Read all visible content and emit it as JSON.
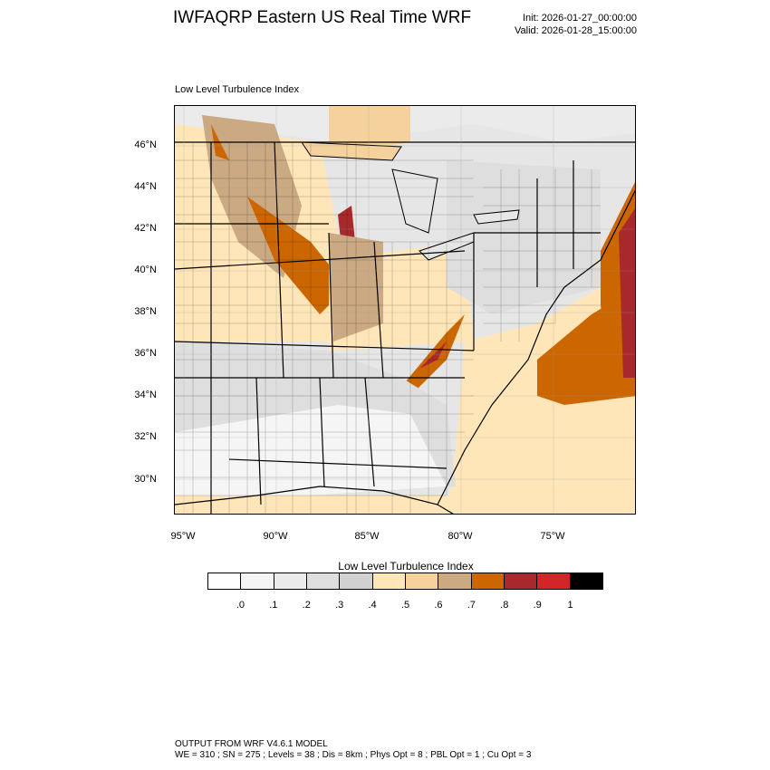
{
  "header": {
    "title": "IWFAQRP Eastern US Real Time WRF",
    "init": "Init: 2026-01-27_00:00:00",
    "valid": "Valid: 2026-01-28_15:00:00"
  },
  "map": {
    "field_title": "Low Level Turbulence Index",
    "lat_labels": [
      "46°N",
      "44°N",
      "42°N",
      "40°N",
      "38°N",
      "36°N",
      "34°N",
      "32°N",
      "30°N"
    ],
    "lon_labels": [
      "95°W",
      "90°W",
      "85°W",
      "80°W",
      "75°W"
    ],
    "region": "Eastern United States"
  },
  "colorbar": {
    "title": "Low Level Turbulence Index",
    "labels": [
      ".0",
      ".1",
      ".2",
      ".3",
      ".4",
      ".5",
      ".6",
      ".7",
      ".8",
      ".9",
      "1"
    ],
    "colors": [
      "#ffffff",
      "#f5f5f5",
      "#ebebeb",
      "#dedede",
      "#d1d1d1",
      "#ffe6b8",
      "#f5d29d",
      "#cba982",
      "#cc6600",
      "#a8292b",
      "#d4242a",
      "#000000"
    ]
  },
  "footer": {
    "line1": "OUTPUT FROM WRF V4.6.1 MODEL",
    "line2": "WE = 310 ; SN = 275 ; Levels = 38 ; Dis = 8km ; Phys Opt = 8 ; PBL Opt = 1 ; Cu Opt = 3"
  }
}
